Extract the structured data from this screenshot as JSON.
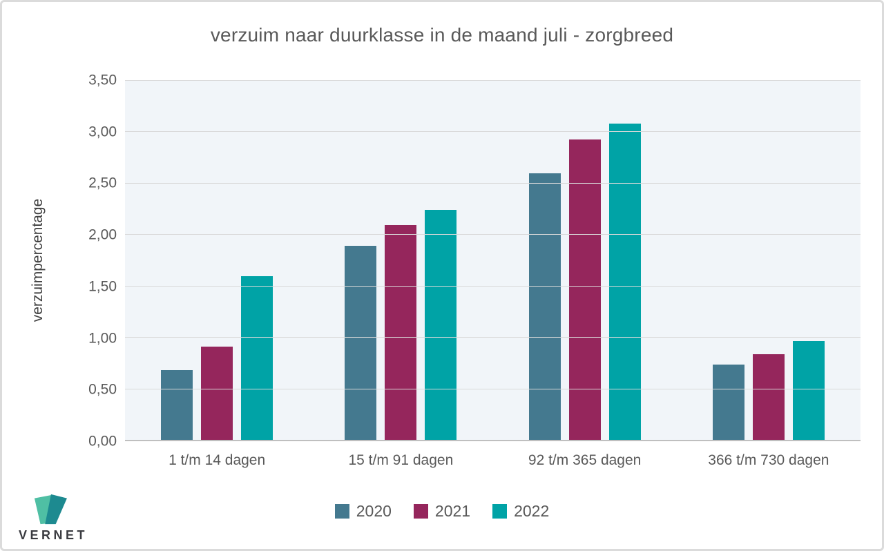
{
  "chart_data": {
    "type": "bar",
    "title": "verzuim naar duurklasse in de maand juli - zorgbreed",
    "ylabel": "verzuimpercentage",
    "xlabel": "",
    "categories": [
      "1 t/m 14 dagen",
      "15 t/m 91 dagen",
      "92 t/m 365 dagen",
      "366 t/m 730 dagen"
    ],
    "series": [
      {
        "name": "2020",
        "color": "#44798f",
        "values": [
          0.68,
          1.89,
          2.59,
          0.73
        ]
      },
      {
        "name": "2021",
        "color": "#95265c",
        "values": [
          0.91,
          2.09,
          2.92,
          0.83
        ]
      },
      {
        "name": "2022",
        "color": "#00a3a6",
        "values": [
          1.59,
          2.24,
          3.08,
          0.96
        ]
      }
    ],
    "ylim": [
      0,
      3.5
    ],
    "ytick_step": 0.5,
    "ytick_labels": [
      "0,00",
      "0,50",
      "1,00",
      "1,50",
      "2,00",
      "2,50",
      "3,00",
      "3,50"
    ],
    "grid": true,
    "legend_position": "bottom",
    "colors": {
      "plot_background": "#f1f5f9",
      "gridline": "#d9d9d9",
      "axis_line": "#bfbfbf",
      "text": "#595959"
    }
  },
  "logo": {
    "text": "VERNET",
    "v_left_color": "#4fbfa4",
    "v_right_color": "#1d8a90"
  }
}
